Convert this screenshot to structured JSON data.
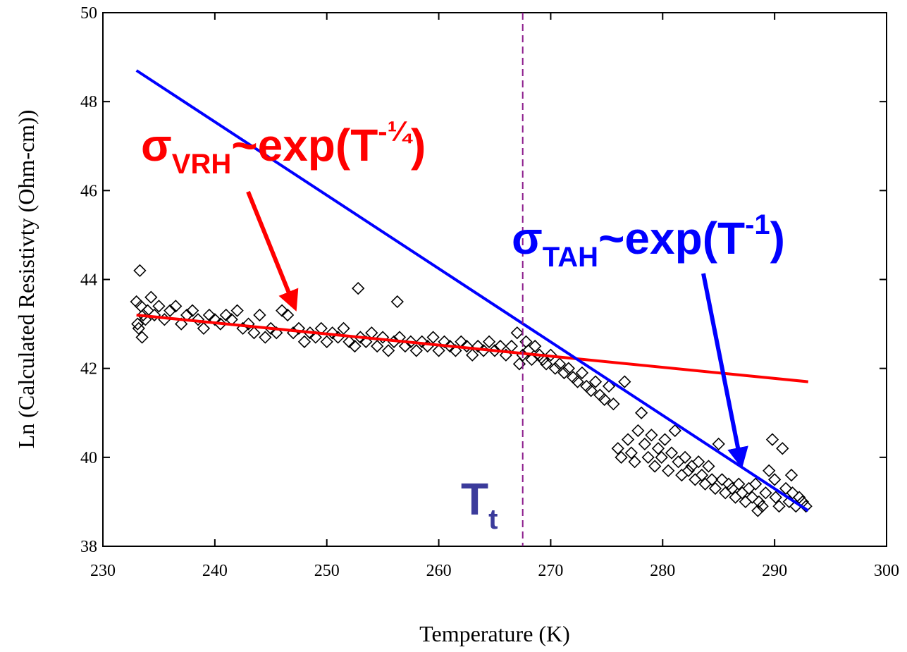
{
  "chart_data": {
    "type": "scatter",
    "xlabel": "Temperature (K)",
    "ylabel": "Ln (Calculated Resistivty (Ohm-cm))",
    "xlim": [
      230,
      300
    ],
    "ylim": [
      38,
      50
    ],
    "xticks": [
      "230",
      "240",
      "250",
      "260",
      "270",
      "280",
      "290",
      "300"
    ],
    "yticks": [
      "38",
      "40",
      "42",
      "44",
      "46",
      "48",
      "50"
    ],
    "grid": false,
    "marker": "diamond",
    "points": [
      [
        233.0,
        43.5
      ],
      [
        233.1,
        43.0
      ],
      [
        233.2,
        42.9
      ],
      [
        233.3,
        44.2
      ],
      [
        233.4,
        43.4
      ],
      [
        233.5,
        42.7
      ],
      [
        233.6,
        43.2
      ],
      [
        233.8,
        43.1
      ],
      [
        234.0,
        43.3
      ],
      [
        234.3,
        43.6
      ],
      [
        234.6,
        43.2
      ],
      [
        235.0,
        43.4
      ],
      [
        235.5,
        43.1
      ],
      [
        236.0,
        43.3
      ],
      [
        236.5,
        43.4
      ],
      [
        237.0,
        43.0
      ],
      [
        237.5,
        43.2
      ],
      [
        238.0,
        43.3
      ],
      [
        238.5,
        43.1
      ],
      [
        239.0,
        42.9
      ],
      [
        239.5,
        43.2
      ],
      [
        240.0,
        43.1
      ],
      [
        240.5,
        43.0
      ],
      [
        241.0,
        43.2
      ],
      [
        241.5,
        43.1
      ],
      [
        242.0,
        43.3
      ],
      [
        242.5,
        42.9
      ],
      [
        243.0,
        43.0
      ],
      [
        243.5,
        42.8
      ],
      [
        244.0,
        43.2
      ],
      [
        244.5,
        42.7
      ],
      [
        245.0,
        42.9
      ],
      [
        245.5,
        42.8
      ],
      [
        246.0,
        43.3
      ],
      [
        246.5,
        43.2
      ],
      [
        247.0,
        42.8
      ],
      [
        247.5,
        42.9
      ],
      [
        248.0,
        42.6
      ],
      [
        248.5,
        42.8
      ],
      [
        249.0,
        42.7
      ],
      [
        249.5,
        42.9
      ],
      [
        250.0,
        42.6
      ],
      [
        250.5,
        42.8
      ],
      [
        251.0,
        42.7
      ],
      [
        251.5,
        42.9
      ],
      [
        252.0,
        42.6
      ],
      [
        252.5,
        42.5
      ],
      [
        252.8,
        43.8
      ],
      [
        253.0,
        42.7
      ],
      [
        253.5,
        42.6
      ],
      [
        254.0,
        42.8
      ],
      [
        254.5,
        42.5
      ],
      [
        255.0,
        42.7
      ],
      [
        255.5,
        42.4
      ],
      [
        256.0,
        42.6
      ],
      [
        256.3,
        43.5
      ],
      [
        256.5,
        42.7
      ],
      [
        257.0,
        42.5
      ],
      [
        257.5,
        42.6
      ],
      [
        258.0,
        42.4
      ],
      [
        258.5,
        42.6
      ],
      [
        259.0,
        42.5
      ],
      [
        259.5,
        42.7
      ],
      [
        260.0,
        42.4
      ],
      [
        260.5,
        42.6
      ],
      [
        261.0,
        42.5
      ],
      [
        261.5,
        42.4
      ],
      [
        262.0,
        42.6
      ],
      [
        262.5,
        42.5
      ],
      [
        263.0,
        42.3
      ],
      [
        263.5,
        42.5
      ],
      [
        264.0,
        42.4
      ],
      [
        264.5,
        42.6
      ],
      [
        265.0,
        42.4
      ],
      [
        265.5,
        42.5
      ],
      [
        266.0,
        42.3
      ],
      [
        266.5,
        42.5
      ],
      [
        267.0,
        42.8
      ],
      [
        267.2,
        42.1
      ],
      [
        267.5,
        42.3
      ],
      [
        267.8,
        42.6
      ],
      [
        268.0,
        42.4
      ],
      [
        268.3,
        42.2
      ],
      [
        268.6,
        42.5
      ],
      [
        269.0,
        42.3
      ],
      [
        269.3,
        42.2
      ],
      [
        269.6,
        42.1
      ],
      [
        270.0,
        42.3
      ],
      [
        270.4,
        42.0
      ],
      [
        270.8,
        42.1
      ],
      [
        271.2,
        41.9
      ],
      [
        271.6,
        42.0
      ],
      [
        272.0,
        41.8
      ],
      [
        272.4,
        41.7
      ],
      [
        272.8,
        41.9
      ],
      [
        273.2,
        41.6
      ],
      [
        273.6,
        41.5
      ],
      [
        274.0,
        41.7
      ],
      [
        274.4,
        41.4
      ],
      [
        274.8,
        41.3
      ],
      [
        275.2,
        41.6
      ],
      [
        275.6,
        41.2
      ],
      [
        276.0,
        40.2
      ],
      [
        276.3,
        40.0
      ],
      [
        276.6,
        41.7
      ],
      [
        276.9,
        40.4
      ],
      [
        277.2,
        40.1
      ],
      [
        277.5,
        39.9
      ],
      [
        277.8,
        40.6
      ],
      [
        278.1,
        41.0
      ],
      [
        278.4,
        40.3
      ],
      [
        278.7,
        40.0
      ],
      [
        279.0,
        40.5
      ],
      [
        279.3,
        39.8
      ],
      [
        279.6,
        40.2
      ],
      [
        279.9,
        40.0
      ],
      [
        280.2,
        40.4
      ],
      [
        280.5,
        39.7
      ],
      [
        280.8,
        40.1
      ],
      [
        281.1,
        40.6
      ],
      [
        281.4,
        39.9
      ],
      [
        281.7,
        39.6
      ],
      [
        282.0,
        40.0
      ],
      [
        282.3,
        39.7
      ],
      [
        282.6,
        39.8
      ],
      [
        282.9,
        39.5
      ],
      [
        283.2,
        39.9
      ],
      [
        283.5,
        39.6
      ],
      [
        283.8,
        39.4
      ],
      [
        284.1,
        39.8
      ],
      [
        284.4,
        39.5
      ],
      [
        284.7,
        39.3
      ],
      [
        285.0,
        40.3
      ],
      [
        285.3,
        39.5
      ],
      [
        285.6,
        39.2
      ],
      [
        285.9,
        39.4
      ],
      [
        286.2,
        39.3
      ],
      [
        286.5,
        39.1
      ],
      [
        286.8,
        39.4
      ],
      [
        287.1,
        39.2
      ],
      [
        287.4,
        39.0
      ],
      [
        287.7,
        39.3
      ],
      [
        288.0,
        39.1
      ],
      [
        288.3,
        39.4
      ],
      [
        288.6,
        39.0
      ],
      [
        288.9,
        38.9
      ],
      [
        289.2,
        39.2
      ],
      [
        289.5,
        39.7
      ],
      [
        289.8,
        40.4
      ],
      [
        290.1,
        39.1
      ],
      [
        290.4,
        38.9
      ],
      [
        290.7,
        40.2
      ],
      [
        291.0,
        39.3
      ],
      [
        291.3,
        39.0
      ],
      [
        291.6,
        39.2
      ],
      [
        291.9,
        38.9
      ],
      [
        292.2,
        39.1
      ],
      [
        292.5,
        39.0
      ],
      [
        292.8,
        38.9
      ],
      [
        288.5,
        38.8
      ],
      [
        290.0,
        39.5
      ],
      [
        291.5,
        39.6
      ]
    ],
    "fit_lines": [
      {
        "color": "#ff0000",
        "x": [
          233,
          293
        ],
        "y": [
          43.2,
          41.7
        ]
      },
      {
        "color": "#0000ff",
        "x": [
          233,
          293
        ],
        "y": [
          48.7,
          38.8
        ]
      }
    ],
    "vline": {
      "x": 267.5,
      "color": "#8b1a8b",
      "style": "dashed"
    },
    "annotations": [
      {
        "main": "σ",
        "sub": "VRH",
        "rest": "~exp(T",
        "sup": "-¼",
        "close": ")",
        "color": "#ff0000"
      },
      {
        "main": "σ",
        "sub": "TAH",
        "rest": "~exp(T",
        "sup": "-1",
        "close": ")",
        "color": "#0000ff"
      },
      {
        "main": "T",
        "sub": "t",
        "color": "#3b3b9b"
      }
    ],
    "arrows": [
      {
        "color": "#ff0000"
      },
      {
        "color": "#0000ff"
      }
    ]
  }
}
